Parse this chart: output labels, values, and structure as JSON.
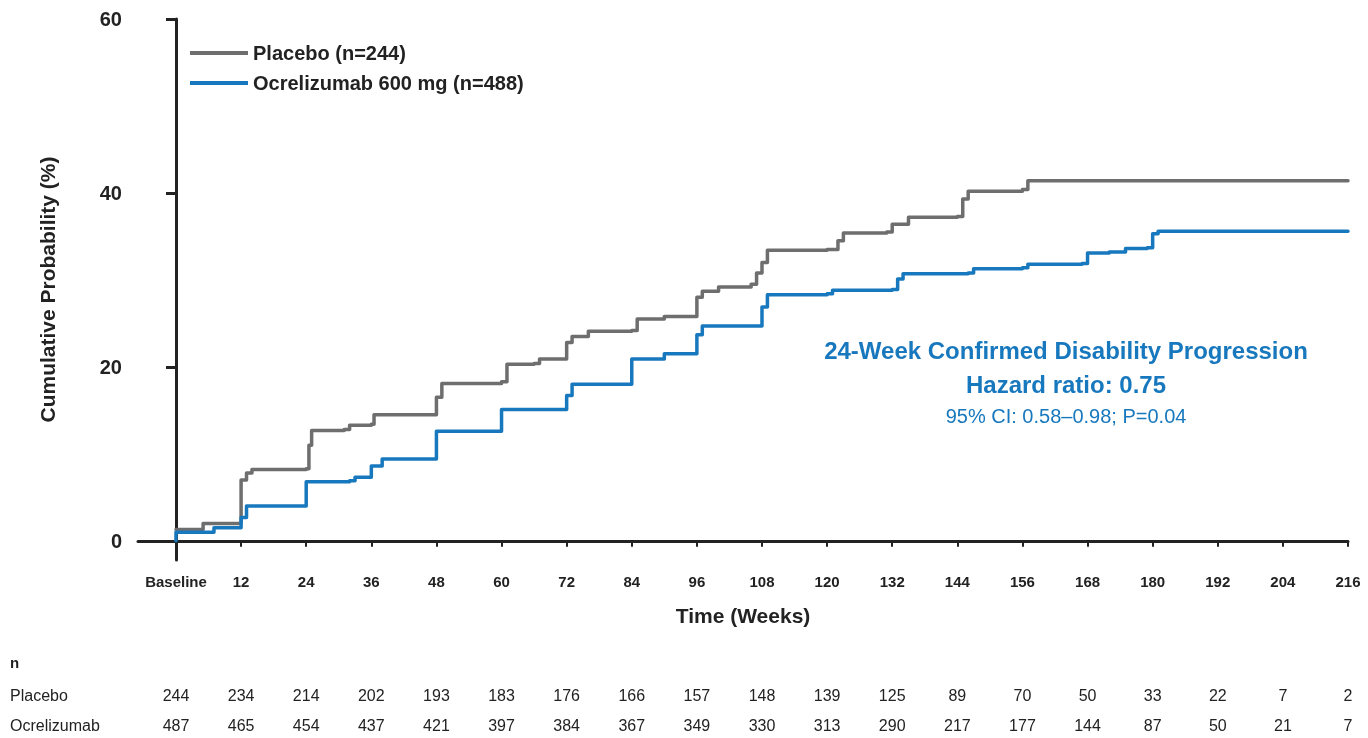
{
  "chart_data": {
    "type": "step",
    "xlabel": "Time (Weeks)",
    "ylabel": "Cumulative Probability (%)",
    "xlim": [
      -7,
      216
    ],
    "xticks": [
      {
        "value": 0,
        "label": "Baseline"
      },
      12,
      24,
      36,
      48,
      60,
      72,
      84,
      96,
      108,
      120,
      132,
      144,
      156,
      168,
      180,
      192,
      204,
      216
    ],
    "ylim": [
      -2.2,
      60
    ],
    "yticks": [
      0,
      20,
      40,
      60
    ],
    "legend": "top left",
    "marker": "none",
    "line_style": "solid",
    "series": [
      {
        "name": "Placebo (n=244)",
        "color": "#6e6e6e",
        "x": [
          0,
          5,
          12,
          12,
          13,
          14,
          24,
          24.5,
          25,
          31,
          32,
          36,
          36.5,
          48,
          48,
          49,
          60,
          61,
          66,
          67,
          72,
          72,
          73,
          76,
          84,
          85,
          90,
          96,
          96,
          97,
          100,
          106,
          107,
          108,
          109,
          120,
          122,
          123,
          131,
          132,
          135,
          144,
          145,
          146,
          156,
          157,
          216
        ],
        "values": [
          1.3,
          2.0,
          2.5,
          7,
          7.8,
          8.2,
          8.3,
          11,
          12.7,
          12.8,
          13.3,
          13.4,
          14.5,
          14.6,
          16.5,
          18.1,
          18.3,
          20.3,
          20.4,
          20.9,
          21,
          22.8,
          23.5,
          24.1,
          24.2,
          25.5,
          25.8,
          26.3,
          28,
          28.7,
          29.2,
          29.5,
          30.8,
          32,
          33.4,
          33.5,
          34.5,
          35.4,
          35.5,
          36.4,
          37.2,
          37.3,
          39.3,
          40.2,
          40.4,
          41.4,
          41.4
        ]
      },
      {
        "name": "Ocrelizumab 600 mg (n=488)",
        "color": "#1878be",
        "x": [
          0,
          0,
          6,
          7,
          12,
          12,
          13,
          24,
          24,
          32,
          33,
          36,
          36,
          38,
          48,
          48,
          60,
          60,
          72,
          72,
          73,
          84,
          84,
          90,
          96,
          96,
          97,
          108,
          108,
          109,
          120,
          121,
          132,
          133,
          134,
          146,
          147,
          156,
          157,
          167,
          168,
          172,
          175,
          179,
          180,
          181,
          216
        ],
        "values": [
          0,
          1.0,
          1.0,
          1.5,
          1.5,
          2.7,
          4,
          4.0,
          6.8,
          6.9,
          7.3,
          7.3,
          8.6,
          9.4,
          9.4,
          12.6,
          12.7,
          15.1,
          15.1,
          16.7,
          18,
          18.1,
          20.9,
          21.5,
          21.6,
          23.7,
          24.7,
          24.8,
          26.9,
          28.3,
          28.4,
          28.8,
          28.9,
          30.1,
          30.7,
          30.8,
          31.3,
          31.4,
          31.8,
          31.9,
          33.1,
          33.2,
          33.6,
          33.7,
          35.3,
          35.6,
          35.6
        ]
      }
    ],
    "annotations": [
      "24-Week Confirmed Disability Progression",
      "Hazard ratio: 0.75",
      "95% CI: 0.58–0.98; P=0.04",
      "n",
      "Placebo 244 234 214 202 193 183 176 166 157 148 139 125 89 70 50 33 22 7 2",
      "Ocrelizumab 487 465 454 437 421 397 384 367 349 330 313 290 217 177 144 87 50 21 7"
    ]
  }
}
